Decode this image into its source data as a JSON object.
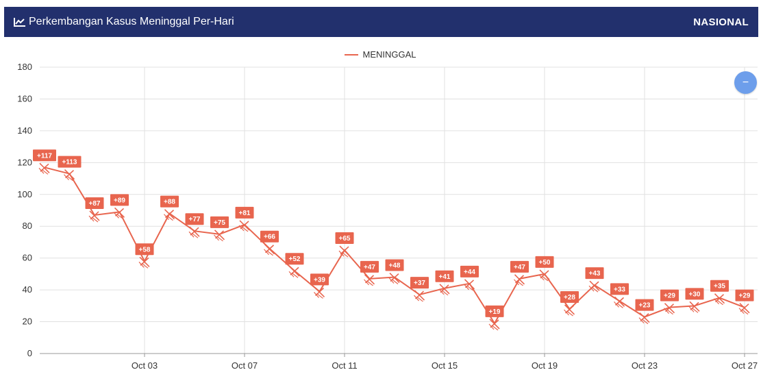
{
  "header": {
    "title": "Perkembangan Kasus Meninggal Per-Hari",
    "region": "NASIONAL",
    "icon": "line-chart-icon"
  },
  "zoom_button": {
    "label": "−",
    "icon": "minus-icon"
  },
  "colors": {
    "header_bg": "#22306d",
    "series": "#e8654e",
    "grid": "#e0e0e0",
    "zoom": "#6d9eeb"
  },
  "chart_data": {
    "type": "line",
    "title": "",
    "legend": [
      "MENINGGAL"
    ],
    "legend_position": "top-center",
    "xlabel": "",
    "ylabel": "",
    "ylim": [
      0,
      180
    ],
    "yticks": [
      0,
      20,
      40,
      60,
      80,
      100,
      120,
      140,
      160,
      180
    ],
    "x": [
      "Sep 29",
      "Sep 30",
      "Oct 01",
      "Oct 02",
      "Oct 03",
      "Oct 04",
      "Oct 05",
      "Oct 06",
      "Oct 07",
      "Oct 08",
      "Oct 09",
      "Oct 10",
      "Oct 11",
      "Oct 12",
      "Oct 13",
      "Oct 14",
      "Oct 15",
      "Oct 16",
      "Oct 17",
      "Oct 18",
      "Oct 19",
      "Oct 20",
      "Oct 21",
      "Oct 22",
      "Oct 23",
      "Oct 24",
      "Oct 25",
      "Oct 26",
      "Oct 27"
    ],
    "xticks": [
      "Oct 03",
      "Oct 07",
      "Oct 11",
      "Oct 15",
      "Oct 19",
      "Oct 23",
      "Oct 27"
    ],
    "grid": true,
    "series": [
      {
        "name": "MENINGGAL",
        "values": [
          117,
          113,
          87,
          89,
          58,
          88,
          77,
          75,
          81,
          66,
          52,
          39,
          65,
          47,
          48,
          37,
          41,
          44,
          19,
          47,
          50,
          28,
          43,
          33,
          23,
          29,
          30,
          35,
          29
        ],
        "labels": [
          "+117",
          "+113",
          "+87",
          "+89",
          "+58",
          "+88",
          "+77",
          "+75",
          "+81",
          "+66",
          "+52",
          "+39",
          "+65",
          "+47",
          "+48",
          "+37",
          "+41",
          "+44",
          "+19",
          "+47",
          "+50",
          "+28",
          "+43",
          "+33",
          "+23",
          "+29",
          "+30",
          "+35",
          "+29"
        ]
      }
    ]
  }
}
